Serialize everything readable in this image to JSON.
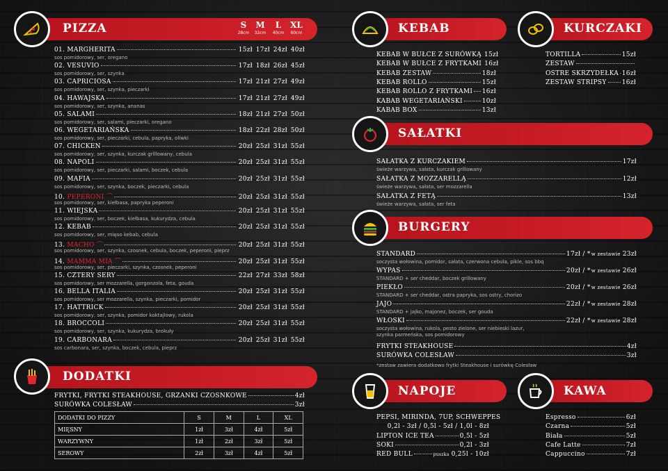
{
  "pizza": {
    "title": "PIZZA",
    "sizes": [
      {
        "label": "S",
        "cm": "28cm"
      },
      {
        "label": "M",
        "cm": "32cm"
      },
      {
        "label": "L",
        "cm": "40cm"
      },
      {
        "label": "XL",
        "cm": "60cm"
      }
    ],
    "items": [
      {
        "name": "01. MARGHERITA",
        "prices": [
          "15zł",
          "17zł",
          "24zł",
          "40zł"
        ],
        "desc": "sos pomidorowy, ser, oregano"
      },
      {
        "name": "02. VESUVIO",
        "prices": [
          "17zł",
          "18zł",
          "26zł",
          "45zł"
        ],
        "desc": "sos pomidorowy, ser, szynka"
      },
      {
        "name": "03. CAPRICIOSA",
        "prices": [
          "17zł",
          "21zł",
          "27zł",
          "49zł"
        ],
        "desc": "sos pomidorowy, ser, szynka, pieczarki"
      },
      {
        "name": "04. HAWAJSKA",
        "prices": [
          "17zł",
          "21zł",
          "27zł",
          "49zł"
        ],
        "desc": "sos pomidorowy, ser, szynka, ananas"
      },
      {
        "name": "05. SALAMI",
        "prices": [
          "18zł",
          "21zł",
          "27zł",
          "50zł"
        ],
        "desc": "sos pomidorowy, ser, salami, pieczarki, oregano"
      },
      {
        "name": "06. WEGETARIAŃSKA",
        "prices": [
          "18zł",
          "22zł",
          "28zł",
          "50zł"
        ],
        "desc": "sos pomidorowy, ser, pieczarki, cebula, papryka, oliwki"
      },
      {
        "name": "07. CHICKEN",
        "prices": [
          "20zł",
          "25zł",
          "31zł",
          "55zł"
        ],
        "desc": "sos pomidorowy, ser, szynka, kurczak grillowany, cebula"
      },
      {
        "name": "08. NAPOLI",
        "prices": [
          "20zł",
          "25zł",
          "31zł",
          "55zł"
        ],
        "desc": "sos pomidorowy, ser, pieczarki, salami, boczek, cebula"
      },
      {
        "name": "09. MAFIA",
        "prices": [
          "20zł",
          "25zł",
          "31zł",
          "55zł"
        ],
        "desc": "sos pomidorowy, ser, szynka, boczek, pieczarki, cebula"
      },
      {
        "num": "10.",
        "hot": "PEPERONI",
        "prices": [
          "20zł",
          "25zł",
          "31zł",
          "55zł"
        ],
        "desc": "sos pomidorowy, ser, kiełbasa, papryka peperoni"
      },
      {
        "name": "11. WIEJSKA",
        "prices": [
          "20zł",
          "25zł",
          "31zł",
          "55zł"
        ],
        "desc": "sos pomidorowy, ser, boczek, kiełbasa, kukurydza, cebula"
      },
      {
        "name": "12. KEBAB",
        "prices": [
          "20zł",
          "25zł",
          "31zł",
          "55zł"
        ],
        "desc": "sos pomidorowy, ser, mięso kebab, cebula"
      },
      {
        "num": "13.",
        "hot": "MACHO",
        "prices": [
          "20zł",
          "25zł",
          "31zł",
          "55zł"
        ],
        "desc": "sos pomidorowy, ser, szynka, czosnek, cebula, boczek, peperoni, pieprz"
      },
      {
        "num": "14.",
        "hot": "MAMMA MIA",
        "prices": [
          "20zł",
          "25zł",
          "31zł",
          "55zł"
        ],
        "desc": "sos pomidorowy, ser, pieczarki, szynka, czosnek, peperoni"
      },
      {
        "name": "15. CZTERY SERY",
        "prices": [
          "22zł",
          "27zł",
          "33zł",
          "58zł"
        ],
        "desc": "sos pomidorowy, ser mozzarella, gorgonzola, feta, gouda"
      },
      {
        "name": "16. BELLA ITALIA",
        "prices": [
          "20zł",
          "25zł",
          "31zł",
          "55zł"
        ],
        "desc": "sos pomidorowy, ser mozzarella, szynka, pieczarki, pomidor"
      },
      {
        "name": "17. HATTRICK",
        "prices": [
          "20zł",
          "25zł",
          "31zł",
          "55zł"
        ],
        "desc": "sos pomidorowy, ser, szynka, pomidor koktajlowy, rukola"
      },
      {
        "name": "18. BROCCOLI",
        "prices": [
          "20zł",
          "25zł",
          "31zł",
          "55zł"
        ],
        "desc": "sos pomidorowy, ser, szynka, kukurydza, brokuły"
      },
      {
        "name": "19. CARBONARA",
        "prices": [
          "20zł",
          "25zł",
          "31zł",
          "55zł"
        ],
        "desc": "sos carbonara, ser, szynka, boczek, cebula, pieprz"
      }
    ]
  },
  "dodatki": {
    "title": "DODATKI",
    "items": [
      {
        "name": "FRYTKI, FRYTKI STEAKHOUSE, GRZANKI CZOSNKOWE",
        "price": "4zł"
      },
      {
        "name": "SURÓWKA COLESŁAW",
        "price": "3zł"
      }
    ],
    "table": {
      "header": [
        "DODATKI DO PIZZY",
        "S",
        "M",
        "L",
        "XL"
      ],
      "rows": [
        [
          "MIĘSNY",
          "1zł",
          "3zł",
          "4zł",
          "5zł"
        ],
        [
          "WARZYWNY",
          "1zł",
          "2zł",
          "3zł",
          "5zł"
        ],
        [
          "SEROWY",
          "2zł",
          "3zł",
          "4zł",
          "5zł"
        ]
      ]
    }
  },
  "kebab": {
    "title": "KEBAB",
    "items": [
      {
        "name": "KEBAB W BUŁCE Z SURÓWKĄ",
        "price": "15zł"
      },
      {
        "name": "KEBAB W BUŁCE Z FRYTKAMI",
        "price": "16zł"
      },
      {
        "name": "KEBAB ZESTAW",
        "price": "18zł"
      },
      {
        "name": "KEBAB ROLLO",
        "price": "15zł"
      },
      {
        "name": "KEBAB ROLLO Z FRYTKAMI",
        "price": "16zł"
      },
      {
        "name": "KABAB WEGETARIAŃSKI",
        "price": "10zł"
      },
      {
        "name": "KABAB BOX",
        "price": "13zł"
      }
    ]
  },
  "kurczaki": {
    "title": "KURCZAKI",
    "items": [
      {
        "name": "TORTILLA",
        "price": "15zł"
      },
      {
        "name": "ZESTAW",
        "price": ""
      },
      {
        "name": "OSTRE SKRZYDEŁKA",
        "price": "16zł"
      },
      {
        "name": "ZESTAW STRIPSY",
        "price": "16zł"
      }
    ]
  },
  "salatki": {
    "title": "SAŁATKI",
    "items": [
      {
        "name": "SAŁATKA Z KURCZAKIEM",
        "price": "17zł",
        "desc": "świeże warzywa, sałata, kurczak grillowany"
      },
      {
        "name": "SAŁATKA Z MOZZARELLĄ",
        "price": "12zł",
        "desc": "świeże warzywa, sałata, ser mozzarella"
      },
      {
        "name": "SAŁATKA Z FETĄ",
        "price": "13zł",
        "desc": "świeże warzywa, sałata, ser feta"
      }
    ]
  },
  "burgery": {
    "title": "BURGERY",
    "zestaw_label": "w zestawie",
    "items": [
      {
        "name": "STANDARD",
        "price": "17zł / *",
        "zestaw": "23zł",
        "desc": "soczysta wołowina, pomidor, sałata, czerwona cebula, pikle, sos bbq"
      },
      {
        "name": "WYPAS",
        "price": "20zł / *",
        "zestaw": "26zł",
        "desc": "STANDARD + ser cheddar, boczek grillowany"
      },
      {
        "name": "PIEKŁO",
        "price": "20zł / *",
        "zestaw": "26zł",
        "desc": "STANDARD + ser cheddar, ostra papryka, sos ostry, chorizo"
      },
      {
        "name": "JAJO",
        "price": "22zł / *",
        "zestaw": "28zł",
        "desc": "STANDARD + jajko, majonez, boczek, ser gouda"
      },
      {
        "name": "WŁOSKI",
        "price": "22zł / *",
        "zestaw": "28zł",
        "desc": "soczysta wołowina, rukola, pesto zielone, ser niebieski lazur,",
        "desc2": "szynka parmeńska, sos pomidorowy"
      }
    ],
    "extras": [
      {
        "name": "FRYTKI STEAKHOUSE",
        "price": "4zł"
      },
      {
        "name": "SURÓWKA COLESŁAW",
        "price": "3zł"
      }
    ],
    "note": "*zestaw zawiera dodatkowo frytki Steakhouse i surówkę Colesław"
  },
  "napoje": {
    "title": "NAPOJE",
    "items": [
      {
        "name": "PEPSI, MIRINDA, 7UP, SCHWEPPES",
        "price": ""
      },
      {
        "name": "",
        "price": "0,2l - 3zł / 0,5l - 5zł / 1,0l - 8zł"
      },
      {
        "name": "LIPTON ICE TEA",
        "price": "0,5l - 5zł"
      },
      {
        "name": "SOKI",
        "price": "0,2l - 3zł"
      },
      {
        "name": "RED BULL",
        "note": "puszka",
        "price": "0,25l - 10zł"
      }
    ]
  },
  "kawa": {
    "title": "KAWA",
    "items": [
      {
        "name": "Espresso",
        "price": "6zł"
      },
      {
        "name": "Czarna",
        "price": "5zł"
      },
      {
        "name": "Biała",
        "price": "5zł"
      },
      {
        "name": "Cafe Latte",
        "price": "7zł"
      },
      {
        "name": "Cappuccino",
        "price": "7zł"
      }
    ]
  },
  "colors": {
    "red": "#d4232c",
    "band_dark": "#b5121b",
    "bg": "#1d1d1d"
  },
  "icons": {
    "pizza": "pizza-slice-icon",
    "dodatki": "fries-icon",
    "kebab": "taco-icon",
    "kurczaki": "chicken-nuggets-icon",
    "salatki": "tomato-icon",
    "burgery": "burger-icon",
    "napoje": "drink-glass-icon",
    "kawa": "coffee-cup-icon"
  }
}
